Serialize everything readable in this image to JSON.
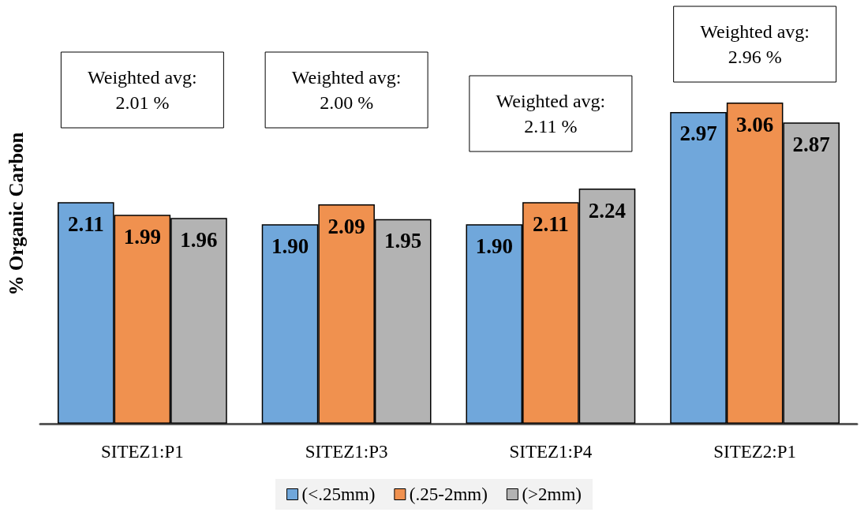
{
  "chart_data": {
    "type": "bar",
    "ylabel": "% Organic Carbon",
    "categories": [
      "SITEZ1:P1",
      "SITEZ1:P3",
      "SITEZ1:P4",
      "SITEZ2:P1"
    ],
    "series": [
      {
        "name": "(<.25mm)",
        "color": "#70a7db",
        "values": [
          2.11,
          1.9,
          1.9,
          2.97
        ],
        "value_labels": [
          "2.11",
          "1.90",
          "1.90",
          "2.97"
        ]
      },
      {
        "name": "(.25-2mm)",
        "color": "#f0914f",
        "values": [
          1.99,
          2.09,
          2.11,
          3.06
        ],
        "value_labels": [
          "1.99",
          "2.09",
          "2.11",
          "3.06"
        ]
      },
      {
        "name": "(>2mm)",
        "color": "#b3b3b3",
        "values": [
          1.96,
          1.95,
          2.24,
          2.87
        ],
        "value_labels": [
          "1.96",
          "1.95",
          "2.24",
          "2.87"
        ]
      }
    ],
    "grid": false,
    "legend": "bottom",
    "tick_labels": "x",
    "annotations": [
      "Weighted avg:\n2.01 %",
      "Weighted avg:\n2.00 %",
      "Weighted avg:\n2.11 %",
      "Weighted avg:\n2.96 %"
    ]
  }
}
